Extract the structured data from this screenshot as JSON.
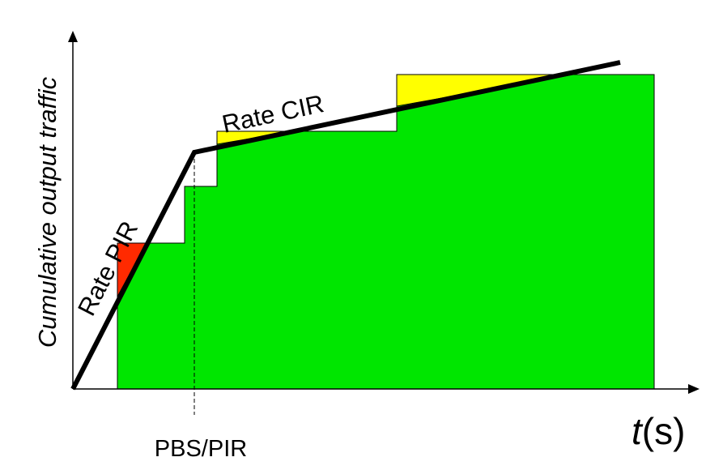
{
  "y_axis_label": "Cumulative output  traffic",
  "x_axis_label_italic": "t",
  "x_axis_label_unit": "(s)",
  "marker_label": "PBS/PIR",
  "rate_pir_label": "Rate PIR",
  "rate_cir_label": "Rate CIR",
  "colors": {
    "traffic_fill": "#00E600",
    "excess_red": "#FF2A00",
    "excess_yellow": "#FFFF00",
    "envelope": "#000000"
  }
}
